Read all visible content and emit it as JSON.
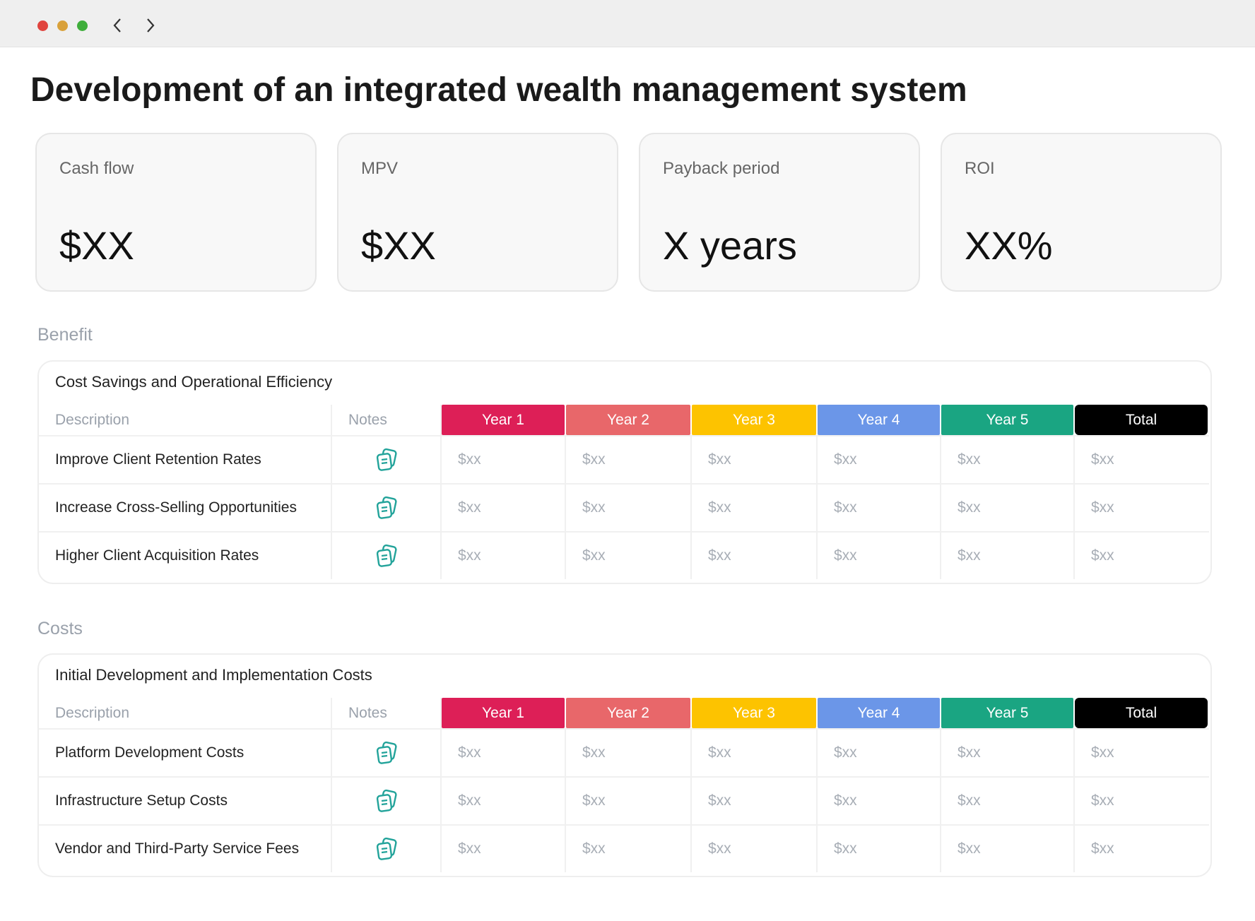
{
  "title": "Development of an integrated wealth management system",
  "metrics": [
    {
      "label": "Cash flow",
      "value": "$XX"
    },
    {
      "label": "MPV",
      "value": "$XX"
    },
    {
      "label": "Payback period",
      "value": "X years"
    },
    {
      "label": "ROI",
      "value": "XX%"
    }
  ],
  "sections": [
    {
      "heading": "Benefit",
      "table": {
        "title": "Cost Savings and Operational Efficiency",
        "columns": [
          "Description",
          "Notes",
          "Year 1",
          "Year 2",
          "Year 3",
          "Year 4",
          "Year 5",
          "Total"
        ],
        "rows": [
          {
            "label": "Improve Client Retention Rates",
            "values": [
              "$xx",
              "$xx",
              "$xx",
              "$xx",
              "$xx",
              "$xx"
            ]
          },
          {
            "label": "Increase Cross-Selling Opportunities",
            "values": [
              "$xx",
              "$xx",
              "$xx",
              "$xx",
              "$xx",
              "$xx"
            ]
          },
          {
            "label": "Higher Client Acquisition Rates",
            "values": [
              "$xx",
              "$xx",
              "$xx",
              "$xx",
              "$xx",
              "$xx"
            ]
          }
        ]
      }
    },
    {
      "heading": "Costs",
      "table": {
        "title": "Initial Development and Implementation Costs",
        "columns": [
          "Description",
          "Notes",
          "Year 1",
          "Year 2",
          "Year 3",
          "Year 4",
          "Year 5",
          "Total"
        ],
        "rows": [
          {
            "label": "Platform Development Costs",
            "values": [
              "$xx",
              "$xx",
              "$xx",
              "$xx",
              "$xx",
              "$xx"
            ]
          },
          {
            "label": "Infrastructure Setup Costs",
            "values": [
              "$xx",
              "$xx",
              "$xx",
              "$xx",
              "$xx",
              "$xx"
            ]
          },
          {
            "label": "Vendor and Third-Party Service Fees",
            "values": [
              "$xx",
              "$xx",
              "$xx",
              "$xx",
              "$xx",
              "$xx"
            ]
          }
        ]
      }
    }
  ]
}
